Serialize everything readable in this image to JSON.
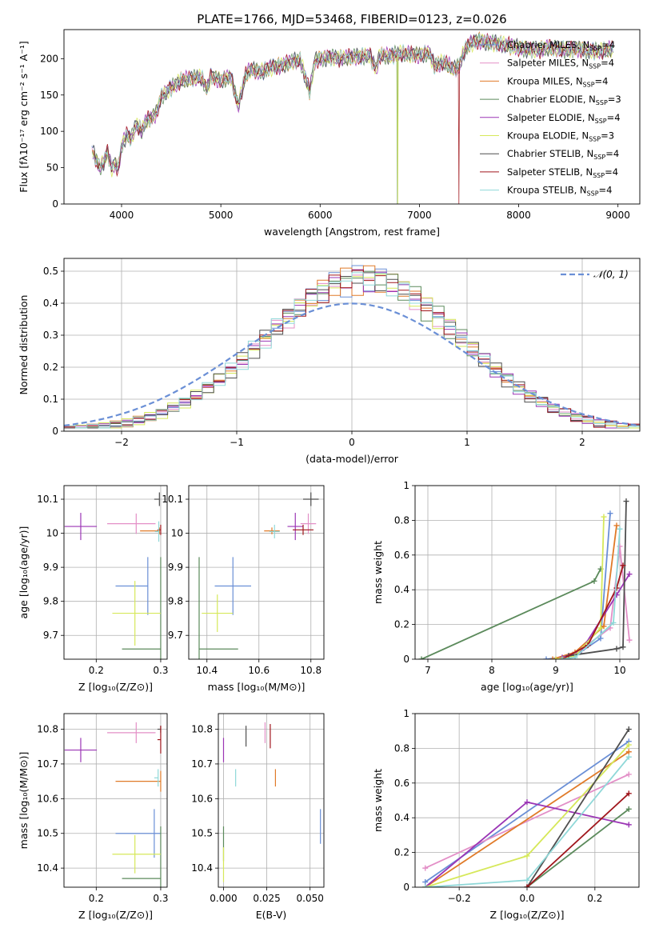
{
  "figure": {
    "title": "PLATE=1766, MJD=53468, FIBERID=0123, z=0.026"
  },
  "colors": {
    "Chabrier MILES": "#6a8fd6",
    "Salpeter MILES": "#e38fc7",
    "Kroupa MILES": "#e07a28",
    "Chabrier ELODIE": "#5b8a5b",
    "Salpeter ELODIE": "#9b35b5",
    "Kroupa ELODIE": "#d6e85a",
    "Chabrier STELIB": "#4f4f4f",
    "Salpeter STELIB": "#a0161c",
    "Kroupa STELIB": "#8fd8d8"
  },
  "chart_data": [
    {
      "id": "spectrum",
      "type": "line",
      "xlabel": "wavelength [Angstrom, rest frame]",
      "ylabel": "Flux [fλ10⁻¹⁷ erg cm⁻² s⁻¹ A⁻¹]",
      "xlim": [
        3420,
        9220
      ],
      "ylim": [
        0,
        240
      ],
      "xticks": [
        4000,
        5000,
        6000,
        7000,
        8000,
        9000
      ],
      "yticks": [
        0,
        50,
        100,
        150,
        200
      ],
      "legend_position": "top-right",
      "legend": [
        {
          "series": "Chabrier MILES",
          "label": "Chabrier MILES, N",
          "sub": "SSP",
          "tail": "=4"
        },
        {
          "series": "Salpeter MILES",
          "label": "Salpeter MILES, N",
          "sub": "SSP",
          "tail": "=4"
        },
        {
          "series": "Kroupa MILES",
          "label": "Kroupa MILES, N",
          "sub": "SSP",
          "tail": "=4"
        },
        {
          "series": "Chabrier ELODIE",
          "label": "Chabrier ELODIE, N",
          "sub": "SSP",
          "tail": "=3"
        },
        {
          "series": "Salpeter ELODIE",
          "label": "Salpeter ELODIE, N",
          "sub": "SSP",
          "tail": "=4"
        },
        {
          "series": "Kroupa ELODIE",
          "label": "Kroupa ELODIE, N",
          "sub": "SSP",
          "tail": "=3"
        },
        {
          "series": "Chabrier STELIB",
          "label": "Chabrier STELIB, N",
          "sub": "SSP",
          "tail": "=4"
        },
        {
          "series": "Salpeter STELIB",
          "label": "Salpeter STELIB, N",
          "sub": "SSP",
          "tail": "=4"
        },
        {
          "series": "Kroupa STELIB",
          "label": "Kroupa STELIB, N",
          "sub": "SSP",
          "tail": "=4"
        }
      ],
      "spectrum_x": [
        3700,
        3740,
        3780,
        3820,
        3860,
        3900,
        3930,
        3970,
        4000,
        4050,
        4100,
        4150,
        4200,
        4250,
        4300,
        4350,
        4400,
        4500,
        4600,
        4700,
        4800,
        4861,
        4900,
        5000,
        5100,
        5175,
        5250,
        5300,
        5400,
        5500,
        5600,
        5700,
        5800,
        5893,
        5950,
        6000,
        6100,
        6200,
        6300,
        6400,
        6500,
        6563,
        6600,
        6700,
        6800,
        6900,
        7000,
        7100,
        7150,
        7250,
        7350,
        7400,
        7450,
        7500,
        7600,
        7700,
        7800,
        7900,
        8000,
        8100,
        8200,
        8300,
        8400,
        8500,
        8600,
        8700,
        8800,
        8900,
        8950
      ],
      "spectrum_y": [
        75,
        62,
        50,
        58,
        72,
        48,
        55,
        50,
        80,
        95,
        90,
        110,
        100,
        115,
        118,
        125,
        148,
        160,
        170,
        172,
        175,
        158,
        176,
        170,
        175,
        135,
        178,
        185,
        182,
        188,
        190,
        195,
        198,
        155,
        198,
        200,
        202,
        200,
        202,
        203,
        205,
        185,
        205,
        203,
        207,
        206,
        205,
        208,
        190,
        195,
        185,
        190,
        210,
        220,
        225,
        222,
        220,
        218,
        215,
        213,
        212,
        215,
        213,
        212,
        214,
        211,
        210,
        212,
        213
      ],
      "dropouts": [
        {
          "series": "Kroupa ELODIE",
          "x": 6780
        },
        {
          "series": "Chabrier ELODIE",
          "x": 6780
        },
        {
          "series": "Salpeter STELIB",
          "x": 7400
        }
      ]
    },
    {
      "id": "residuals",
      "type": "step",
      "xlabel": "(data-model)/error",
      "ylabel": "Normed distribution",
      "xlim": [
        -2.5,
        2.5
      ],
      "ylim": [
        0,
        0.54
      ],
      "xticks": [
        -2,
        -1,
        0,
        1,
        2
      ],
      "yticks": [
        0.0,
        0.1,
        0.2,
        0.3,
        0.4,
        0.5
      ],
      "grid": true,
      "bin_width": 0.1,
      "bin_start": -2.5,
      "legend_position": "top-right",
      "gauss_label": "𝒩(0, 1)",
      "gauss_color": "#6a8fd6"
    },
    {
      "id": "age-vs-Z",
      "type": "scatter",
      "xlabel": "Z [log₁₀(Z/Z⊙)]",
      "ylabel": "age  [log₁₀(age/yr)]",
      "xlim": [
        0.15,
        0.31
      ],
      "ylim": [
        9.63,
        10.14
      ],
      "xticks": [
        0.2,
        0.3
      ],
      "yticks": [
        9.7,
        9.8,
        9.9,
        10.0,
        10.1
      ],
      "grid": true,
      "points": [
        {
          "series": "Chabrier MILES",
          "x": 0.28,
          "y": 9.845,
          "xerr": [
            0.05,
            0.0
          ],
          "yerr": 0.085
        },
        {
          "series": "Salpeter MILES",
          "x": 0.262,
          "y": 10.028,
          "xerr": [
            0.045,
            0.03
          ],
          "yerr": 0.03
        },
        {
          "series": "Kroupa MILES",
          "x": 0.298,
          "y": 10.007,
          "xerr": [
            0.03,
            0.0
          ],
          "yerr": 0.01
        },
        {
          "series": "Chabrier ELODIE",
          "x": 0.3,
          "y": 9.66,
          "xerr": [
            0.06,
            0.0
          ],
          "yerr": 0.27
        },
        {
          "series": "Salpeter ELODIE",
          "x": 0.176,
          "y": 10.02,
          "xerr": [
            0.025,
            0.025
          ],
          "yerr": 0.04
        },
        {
          "series": "Kroupa ELODIE",
          "x": 0.26,
          "y": 9.765,
          "xerr": [
            0.035,
            0.04
          ],
          "yerr": 0.095
        },
        {
          "series": "Chabrier STELIB",
          "x": 0.298,
          "y": 10.1,
          "xerr": [
            0.008,
            0.0
          ],
          "yerr": 0.02
        },
        {
          "series": "Salpeter STELIB",
          "x": 0.3,
          "y": 10.01,
          "xerr": [
            0.005,
            0.0
          ],
          "yerr": 0.015
        },
        {
          "series": "Kroupa STELIB",
          "x": 0.297,
          "y": 10.005,
          "xerr": [
            0.006,
            0.0
          ],
          "yerr": 0.03
        }
      ]
    },
    {
      "id": "age-vs-mass",
      "type": "scatter",
      "xlabel": "mass [log₁₀(M/M⊙)]",
      "ylabel": "",
      "xlim": [
        10.33,
        10.85
      ],
      "ylim": [
        9.63,
        10.14
      ],
      "xticks": [
        10.4,
        10.6,
        10.8
      ],
      "yticks": [
        9.7,
        9.8,
        9.9,
        10.0,
        10.1
      ],
      "grid": true,
      "points": [
        {
          "series": "Chabrier MILES",
          "x": 10.5,
          "y": 9.845,
          "xerr": [
            0.07,
            0.07
          ],
          "yerr": 0.085
        },
        {
          "series": "Salpeter MILES",
          "x": 10.79,
          "y": 10.028,
          "xerr": [
            0.03,
            0.03
          ],
          "yerr": 0.03
        },
        {
          "series": "Kroupa MILES",
          "x": 10.65,
          "y": 10.007,
          "xerr": [
            0.03,
            0.03
          ],
          "yerr": 0.01
        },
        {
          "series": "Chabrier ELODIE",
          "x": 10.37,
          "y": 9.66,
          "xerr": [
            0.0,
            0.15
          ],
          "yerr": 0.27
        },
        {
          "series": "Salpeter ELODIE",
          "x": 10.74,
          "y": 10.02,
          "xerr": [
            0.03,
            0.03
          ],
          "yerr": 0.04
        },
        {
          "series": "Kroupa ELODIE",
          "x": 10.44,
          "y": 9.765,
          "xerr": [
            0.06,
            0.06
          ],
          "yerr": 0.055
        },
        {
          "series": "Chabrier STELIB",
          "x": 10.8,
          "y": 10.1,
          "xerr": [
            0.03,
            0.03
          ],
          "yerr": 0.02
        },
        {
          "series": "Salpeter STELIB",
          "x": 10.77,
          "y": 10.01,
          "xerr": [
            0.04,
            0.04
          ],
          "yerr": 0.015
        },
        {
          "series": "Kroupa STELIB",
          "x": 10.66,
          "y": 10.005,
          "xerr": [
            0.02,
            0.02
          ],
          "yerr": 0.02
        }
      ]
    },
    {
      "id": "weight-vs-age",
      "type": "line",
      "xlabel": "age  [log₁₀(age/yr)]",
      "ylabel": "mass weight",
      "xlim": [
        6.8,
        10.3
      ],
      "ylim": [
        0,
        1.0
      ],
      "xticks": [
        7,
        8,
        9,
        10
      ],
      "yticks": [
        0.0,
        0.2,
        0.4,
        0.6,
        0.8,
        1.0
      ],
      "grid": true,
      "series": [
        {
          "name": "Chabrier MILES",
          "x": [
            8.85,
            9.3,
            9.7,
            9.85
          ],
          "y": [
            0.0,
            0.02,
            0.12,
            0.84
          ]
        },
        {
          "name": "Salpeter MILES",
          "x": [
            9.0,
            9.3,
            9.85,
            10.0,
            10.15
          ],
          "y": [
            0.0,
            0.03,
            0.18,
            0.65,
            0.11
          ]
        },
        {
          "name": "Kroupa MILES",
          "x": [
            8.95,
            9.3,
            9.75,
            9.95
          ],
          "y": [
            0.0,
            0.04,
            0.19,
            0.77
          ]
        },
        {
          "name": "Chabrier ELODIE",
          "x": [
            6.9,
            9.6,
            9.7
          ],
          "y": [
            0.0,
            0.45,
            0.52
          ]
        },
        {
          "name": "Salpeter ELODIE",
          "x": [
            9.1,
            9.4,
            9.95,
            10.15
          ],
          "y": [
            0.01,
            0.05,
            0.37,
            0.49
          ]
        },
        {
          "name": "Kroupa ELODIE",
          "x": [
            9.0,
            9.3,
            9.7,
            9.75
          ],
          "y": [
            0.0,
            0.02,
            0.18,
            0.82
          ]
        },
        {
          "name": "Chabrier STELIB",
          "x": [
            9.2,
            9.95,
            10.05,
            10.1
          ],
          "y": [
            0.02,
            0.06,
            0.07,
            0.91
          ]
        },
        {
          "name": "Salpeter STELIB",
          "x": [
            9.1,
            9.5,
            9.95,
            10.05
          ],
          "y": [
            0.0,
            0.08,
            0.41,
            0.54
          ]
        },
        {
          "name": "Kroupa STELIB",
          "x": [
            9.1,
            9.3,
            9.9,
            10.0
          ],
          "y": [
            0.0,
            0.01,
            0.21,
            0.75
          ]
        }
      ]
    },
    {
      "id": "mass-vs-Z",
      "type": "scatter",
      "xlabel": "Z [log₁₀(Z/Z⊙)]",
      "ylabel": "mass [log₁₀(M/M⊙)]",
      "xlim": [
        0.15,
        0.31
      ],
      "ylim": [
        10.345,
        10.845
      ],
      "xticks": [
        0.2,
        0.3
      ],
      "yticks": [
        10.4,
        10.5,
        10.6,
        10.7,
        10.8
      ],
      "grid": true,
      "points": [
        {
          "series": "Chabrier MILES",
          "x": 0.29,
          "y": 10.5,
          "xerr": [
            0.06,
            0.01
          ],
          "yerr": 0.07
        },
        {
          "series": "Salpeter MILES",
          "x": 0.262,
          "y": 10.79,
          "xerr": [
            0.045,
            0.03
          ],
          "yerr": 0.03
        },
        {
          "series": "Kroupa MILES",
          "x": 0.3,
          "y": 10.65,
          "xerr": [
            0.07,
            0.0
          ],
          "yerr": 0.03
        },
        {
          "series": "Chabrier ELODIE",
          "x": 0.3,
          "y": 10.37,
          "xerr": [
            0.06,
            0.0
          ],
          "yerr": 0.15
        },
        {
          "series": "Salpeter ELODIE",
          "x": 0.176,
          "y": 10.74,
          "xerr": [
            0.025,
            0.025
          ],
          "yerr": 0.035
        },
        {
          "series": "Kroupa ELODIE",
          "x": 0.26,
          "y": 10.44,
          "xerr": [
            0.035,
            0.04
          ],
          "yerr": 0.055
        },
        {
          "series": "Chabrier STELIB",
          "x": 0.3,
          "y": 10.8,
          "xerr": [
            0.005,
            0.0
          ],
          "yerr": 0.01
        },
        {
          "series": "Salpeter STELIB",
          "x": 0.3,
          "y": 10.77,
          "xerr": [
            0.005,
            0.0
          ],
          "yerr": 0.04
        },
        {
          "series": "Kroupa STELIB",
          "x": 0.296,
          "y": 10.66,
          "xerr": [
            0.006,
            0.0
          ],
          "yerr": 0.025
        }
      ]
    },
    {
      "id": "mass-vs-EBV",
      "type": "scatter",
      "xlabel": "E(B-V)",
      "ylabel": "",
      "xlim": [
        -0.003,
        0.058
      ],
      "ylim": [
        10.345,
        10.845
      ],
      "xticks": [
        0.0,
        0.025,
        0.05
      ],
      "xticklabels": [
        "0.000",
        "0.025",
        "0.050"
      ],
      "yticks": [
        10.4,
        10.5,
        10.6,
        10.7,
        10.8
      ],
      "grid": true,
      "points": [
        {
          "series": "Chabrier MILES",
          "x": 0.056,
          "y": 10.52,
          "xerr": [
            0,
            0
          ],
          "yerr": 0.05
        },
        {
          "series": "Salpeter MILES",
          "x": 0.024,
          "y": 10.79,
          "xerr": [
            0,
            0
          ],
          "yerr": 0.03
        },
        {
          "series": "Kroupa MILES",
          "x": 0.03,
          "y": 10.66,
          "xerr": [
            0,
            0
          ],
          "yerr": 0.025
        },
        {
          "series": "Chabrier ELODIE",
          "x": 0.0,
          "y": 10.47,
          "xerr": [
            0,
            0
          ],
          "yerr": 0.05
        },
        {
          "series": "Salpeter ELODIE",
          "x": 0.0,
          "y": 10.74,
          "xerr": [
            0,
            0
          ],
          "yerr": 0.035
        },
        {
          "series": "Kroupa ELODIE",
          "x": 0.0,
          "y": 10.41,
          "xerr": [
            0,
            0
          ],
          "yerr": 0.05
        },
        {
          "series": "Chabrier STELIB",
          "x": 0.013,
          "y": 10.78,
          "xerr": [
            0,
            0
          ],
          "yerr": 0.03
        },
        {
          "series": "Salpeter STELIB",
          "x": 0.027,
          "y": 10.78,
          "xerr": [
            0,
            0
          ],
          "yerr": 0.035
        },
        {
          "series": "Kroupa STELIB",
          "x": 0.007,
          "y": 10.66,
          "xerr": [
            0,
            0
          ],
          "yerr": 0.025
        }
      ]
    },
    {
      "id": "weight-vs-Z",
      "type": "line",
      "xlabel": "Z [log₁₀(Z/Z⊙)]",
      "ylabel": "mass weight",
      "xlim": [
        -0.33,
        0.33
      ],
      "ylim": [
        0,
        1.0
      ],
      "xticks": [
        -0.2,
        0.0,
        0.2
      ],
      "xticklabels": [
        "−0.2",
        "0.0",
        "0.2"
      ],
      "yticks": [
        0.0,
        0.2,
        0.4,
        0.6,
        0.8,
        1.0
      ],
      "grid": true,
      "series": [
        {
          "name": "Chabrier MILES",
          "x": [
            -0.3,
            0.3
          ],
          "y": [
            0.03,
            0.84
          ]
        },
        {
          "name": "Salpeter MILES",
          "x": [
            -0.3,
            0.3
          ],
          "y": [
            0.11,
            0.65
          ]
        },
        {
          "name": "Kroupa MILES",
          "x": [
            -0.3,
            0.3
          ],
          "y": [
            0.0,
            0.78
          ]
        },
        {
          "name": "Chabrier ELODIE",
          "x": [
            0.0,
            0.3
          ],
          "y": [
            0.0,
            0.45
          ]
        },
        {
          "name": "Salpeter ELODIE",
          "x": [
            -0.3,
            0.0,
            0.3
          ],
          "y": [
            0.0,
            0.49,
            0.36
          ]
        },
        {
          "name": "Kroupa ELODIE",
          "x": [
            -0.3,
            0.0,
            0.3
          ],
          "y": [
            0.0,
            0.18,
            0.82
          ]
        },
        {
          "name": "Chabrier STELIB",
          "x": [
            0.0,
            0.3
          ],
          "y": [
            0.0,
            0.91
          ]
        },
        {
          "name": "Salpeter STELIB",
          "x": [
            0.0,
            0.3
          ],
          "y": [
            0.0,
            0.54
          ]
        },
        {
          "name": "Kroupa STELIB",
          "x": [
            -0.3,
            0.0,
            0.3
          ],
          "y": [
            0.0,
            0.04,
            0.75
          ]
        }
      ]
    }
  ]
}
